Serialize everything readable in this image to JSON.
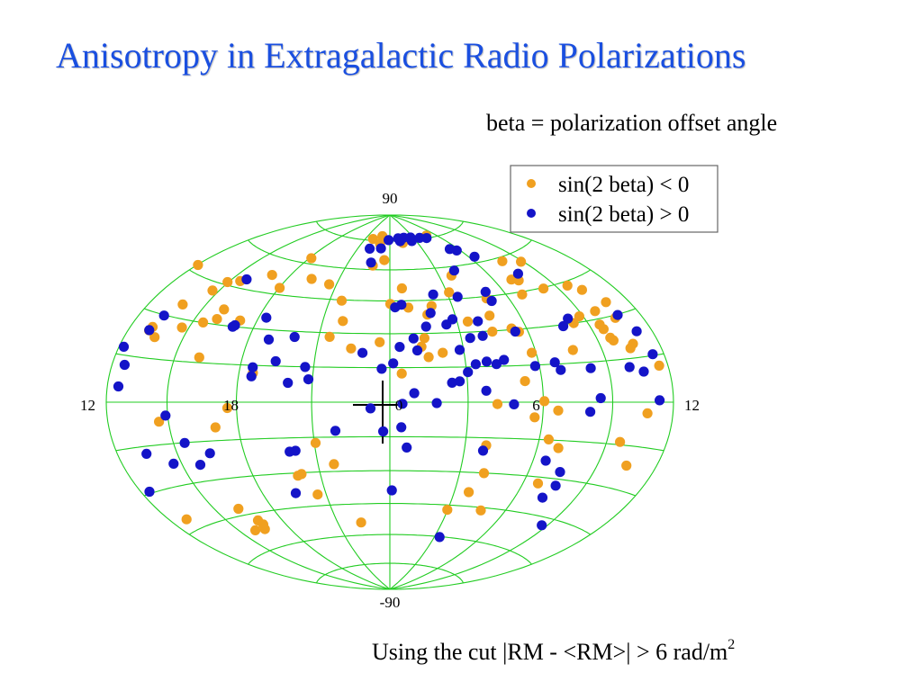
{
  "slide": {
    "title": "Anisotropy in Extragalactic Radio Polarizations",
    "subtitle": "beta = polarization offset angle",
    "caption_main": "Using the cut |RM - <RM>| > 6 rad/m",
    "caption_sup": "2"
  },
  "chart_data": {
    "type": "scatter",
    "projection": "hammer-aitoff",
    "coordinate_system": "right-ascension (hours) / declination (degrees)",
    "grid": true,
    "grid_color": "#22cc22",
    "legend_placement": "top-right",
    "tick_labels": {
      "lat_top": "90",
      "lat_bottom": "-90",
      "lon": [
        {
          "label": "12",
          "ra": 12,
          "side": "left"
        },
        {
          "label": "6",
          "ra": 6
        },
        {
          "label": "0",
          "ra": 0
        },
        {
          "label": "18",
          "ra": 18
        },
        {
          "label": "12",
          "ra": 12,
          "side": "right"
        }
      ]
    },
    "series": [
      {
        "name": "sin(2 beta) < 0",
        "color": "#f0a020",
        "points": [
          [
            1.43,
            73.8
          ],
          [
            4.84,
            76.3
          ],
          [
            3.76,
            55.8
          ],
          [
            0.88,
            41.8
          ],
          [
            3.12,
            48.2
          ],
          [
            1.73,
            38.4
          ],
          [
            0.66,
            50.9
          ],
          [
            3.48,
            34.6
          ],
          [
            4.58,
            36.6
          ],
          [
            1.29,
            24.1
          ],
          [
            2.13,
            21.3
          ],
          [
            6.83,
            43.9
          ],
          [
            7.35,
            49.6
          ],
          [
            9.79,
            32.8
          ],
          [
            8.81,
            32.1
          ],
          [
            9.58,
            26.2
          ],
          [
            7.66,
            20.0
          ],
          [
            5.82,
            20.0
          ],
          [
            5.3,
            8.6
          ],
          [
            6.04,
            0.4
          ],
          [
            5.67,
            -6.1
          ],
          [
            6.63,
            -3.3
          ],
          [
            4.15,
            -0.8
          ],
          [
            3.86,
            -18.2
          ],
          [
            6.92,
            -18.0
          ],
          [
            6.4,
            -14.8
          ],
          [
            6.7,
            -32.6
          ],
          [
            9.63,
            -14.0
          ],
          [
            10.68,
            -3.7
          ],
          [
            11.53,
            11.6
          ],
          [
            10.55,
            29.1
          ],
          [
            9.66,
            22.9
          ],
          [
            5.59,
            28.9
          ],
          [
            5.32,
            30.5
          ],
          [
            4.42,
            29.7
          ],
          [
            4.88,
            44.1
          ],
          [
            7.79,
            58.3
          ],
          [
            8.86,
            56.1
          ],
          [
            9.65,
            43.5
          ],
          [
            10.75,
            34.7
          ],
          [
            10.16,
            40.7
          ],
          [
            10.63,
            19.7
          ],
          [
            10.4,
            18.4
          ],
          [
            9.75,
            21.8
          ],
          [
            9.53,
            28.0
          ],
          [
            8.32,
            30.0
          ],
          [
            8.22,
            44.6
          ],
          [
            7.0,
            50.5
          ],
          [
            3.68,
            -38.7
          ],
          [
            2.98,
            -47.2
          ],
          [
            10.43,
            -21.7
          ],
          [
            0.02,
            43.6
          ],
          [
            2.01,
            42.3
          ],
          [
            1.45,
            27.9
          ],
          [
            1.55,
            19.5
          ],
          [
            0.46,
            12.4
          ],
          [
            4.06,
            -30.1
          ],
          [
            4.73,
            -46.3
          ],
          [
            21.92,
            75.8
          ],
          [
            22.97,
            77.6
          ],
          [
            22.95,
            73.3
          ],
          [
            22.81,
            62.0
          ],
          [
            18.14,
            62.6
          ],
          [
            20.59,
            51.8
          ],
          [
            21.6,
            44.6
          ],
          [
            21.9,
            35.4
          ],
          [
            21.46,
            28.2
          ],
          [
            22.42,
            23.3
          ],
          [
            23.58,
            26.2
          ],
          [
            19.4,
            53.5
          ],
          [
            16.93,
            52.6
          ],
          [
            18.03,
            47.9
          ],
          [
            15.56,
            47.6
          ],
          [
            14.65,
            41.9
          ],
          [
            16.09,
            36.1
          ],
          [
            17.21,
            32.7
          ],
          [
            15.52,
            30.1
          ],
          [
            14.66,
            27.1
          ],
          [
            16.12,
            17.0
          ],
          [
            17.62,
            -2.3
          ],
          [
            14.56,
            -6.9
          ],
          [
            21.05,
            -17.4
          ],
          [
            20.0,
            -31.2
          ],
          [
            20.18,
            -30.6
          ],
          [
            20.59,
            -39.9
          ],
          [
            16.24,
            -42.2
          ],
          [
            16.68,
            -48.0
          ],
          [
            16.74,
            -50.0
          ],
          [
            15.93,
            -51.5
          ],
          [
            16.54,
            -51.9
          ],
          [
            12.96,
            -40.9
          ],
          [
            21.67,
            -26.8
          ],
          [
            22.34,
            -53.8
          ],
          [
            17.04,
            -9.8
          ],
          [
            23.58,
            64.9
          ],
          [
            14.94,
            46.1
          ],
          [
            16.08,
            32.1
          ],
          [
            18.58,
            11.9
          ],
          [
            12.05,
            47.3
          ],
          [
            13.11,
            24.1
          ],
          [
            13.59,
            22.3
          ],
          [
            13.82,
            34.8
          ],
          [
            13.18,
            25.4
          ]
        ]
      },
      {
        "name": "sin(2 beta) > 0",
        "color": "#1414c8",
        "points": [
          [
            1.19,
            74.8
          ],
          [
            1.8,
            76.6
          ],
          [
            2.52,
            74.5
          ],
          [
            2.66,
            76.4
          ],
          [
            4.49,
            75.1
          ],
          [
            3.72,
            75.7
          ],
          [
            1.04,
            76.4
          ],
          [
            5.73,
            66.9
          ],
          [
            5.32,
            68.1
          ],
          [
            4.14,
            58.0
          ],
          [
            5.05,
            47.0
          ],
          [
            3.46,
            45.9
          ],
          [
            6.41,
            62.7
          ],
          [
            7.74,
            52.2
          ],
          [
            5.06,
            42.8
          ],
          [
            2.25,
            47.6
          ],
          [
            3.38,
            27.4
          ],
          [
            0.56,
            43.2
          ],
          [
            0.25,
            42.0
          ],
          [
            2.82,
            35.9
          ],
          [
            2.49,
            33.7
          ],
          [
            1.89,
            39.1
          ],
          [
            3.94,
            34.5
          ],
          [
            3.94,
            28.1
          ],
          [
            5.43,
            29.1
          ],
          [
            3.86,
            17.1
          ],
          [
            1.58,
            33.0
          ],
          [
            0.13,
            16.9
          ],
          [
            1.11,
            22.5
          ],
          [
            0.99,
            27.8
          ],
          [
            0.4,
            24.1
          ],
          [
            4.24,
            15.9
          ],
          [
            2.84,
            22.4
          ],
          [
            4.58,
            17.6
          ],
          [
            3.4,
            16.1
          ],
          [
            5.82,
            14.6
          ],
          [
            2.7,
            8.9
          ],
          [
            2.4,
            8.3
          ],
          [
            3.72,
            4.8
          ],
          [
            3.05,
            12.8
          ],
          [
            1.79,
            -0.4
          ],
          [
            0.93,
            3.9
          ],
          [
            8.01,
            -3.6
          ],
          [
            8.46,
            1.5
          ],
          [
            8.2,
            12.7
          ],
          [
            6.69,
            15.7
          ],
          [
            6.87,
            12.6
          ],
          [
            4.81,
            -0.9
          ],
          [
            6.56,
            -23.3
          ],
          [
            3.77,
            -20.5
          ],
          [
            7.59,
            -32.6
          ],
          [
            7.36,
            -37.9
          ],
          [
            8.69,
            -48.1
          ],
          [
            0.09,
            -38.9
          ],
          [
            7.43,
            -27.2
          ],
          [
            3.35,
            -60.2
          ],
          [
            0.67,
            -19.7
          ],
          [
            0.44,
            -10.9
          ],
          [
            10.78,
            29.8
          ],
          [
            10.66,
            10.2
          ],
          [
            11.17,
            23.4
          ],
          [
            11.27,
            0.6
          ],
          [
            11.4,
            15.4
          ],
          [
            10.02,
            12.1
          ],
          [
            7.74,
            29.4
          ],
          [
            8.18,
            32.0
          ],
          [
            0.48,
            -0.7
          ],
          [
            22.63,
            63.5
          ],
          [
            23.15,
            71.0
          ],
          [
            23.85,
            75.5
          ],
          [
            22.1,
            70.6
          ],
          [
            15.8,
            48.8
          ],
          [
            18.89,
            25.9
          ],
          [
            19.43,
            17.0
          ],
          [
            20.84,
            9.7
          ],
          [
            20.04,
            8.1
          ],
          [
            18.53,
            14.2
          ],
          [
            21.88,
            -12.3
          ],
          [
            20.18,
            -20.5
          ],
          [
            19.93,
            -20.8
          ],
          [
            13.34,
            29.8
          ],
          [
            22.9,
            21.4
          ],
          [
            16.5,
            -19.7
          ],
          [
            15.84,
            -23.7
          ],
          [
            14.61,
            -22.1
          ],
          [
            15.52,
            -15.1
          ],
          [
            14.9,
            -4.8
          ],
          [
            13.51,
            -17.5
          ],
          [
            12.46,
            -29.4
          ],
          [
            12.67,
            12.0
          ],
          [
            12.26,
            17.5
          ],
          [
            12.59,
            5.0
          ],
          [
            13.11,
            24.2
          ],
          [
            17.1,
            30.6
          ],
          [
            17.03,
            29.9
          ],
          [
            18.36,
            34.9
          ],
          [
            18.54,
            10.5
          ],
          [
            19.58,
            -38.7
          ],
          [
            20.66,
            14.9
          ],
          [
            19.97,
            27.6
          ],
          [
            23.26,
            -2.7
          ],
          [
            23.74,
            -12.7
          ],
          [
            23.68,
            14.5
          ]
        ]
      }
    ]
  }
}
